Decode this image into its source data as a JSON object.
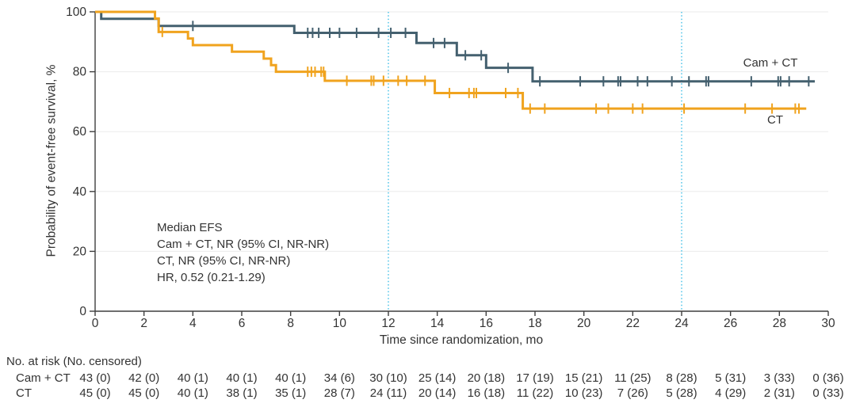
{
  "colors": {
    "cam_ct_line": "#44606F",
    "ct_line": "#F0A31E",
    "reference_line": "#55C6EA",
    "gridline": "#EBEBEB",
    "axis": "#3F3F3F",
    "text": "#333333"
  },
  "chart_data": {
    "type": "line",
    "subtype": "kaplan-meier-step",
    "xlabel": "Time since randomization, mo",
    "ylabel": "Probability of event-free survival, %",
    "xlim": [
      0,
      30
    ],
    "ylim": [
      0,
      100
    ],
    "x_ticks": [
      0,
      2,
      4,
      6,
      8,
      10,
      12,
      14,
      16,
      18,
      20,
      22,
      24,
      26,
      28,
      30
    ],
    "y_ticks": [
      0,
      20,
      40,
      60,
      80,
      100
    ],
    "grid": "horizontal",
    "legend_position": "right-of-curves",
    "reference_lines_x": [
      12,
      24
    ],
    "annotations": [
      "Median EFS",
      "Cam + CT, NR (95% CI, NR-NR)",
      "CT, NR (95% CI, NR-NR)",
      "HR, 0.52 (0.21-1.29)"
    ],
    "series": [
      {
        "name": "Cam + CT",
        "color": "#44606F",
        "steps": [
          [
            0,
            100
          ],
          [
            0.25,
            97.7
          ],
          [
            2.6,
            95.3
          ],
          [
            8.15,
            93.0
          ],
          [
            13.15,
            89.6
          ],
          [
            14.8,
            85.5
          ],
          [
            16.0,
            81.3
          ],
          [
            17.9,
            76.8
          ]
        ],
        "end_time": 29.45,
        "censor_times": [
          4.0,
          8.7,
          8.9,
          9.15,
          9.6,
          10.0,
          10.7,
          11.6,
          12.1,
          12.7,
          13.85,
          14.3,
          15.15,
          15.8,
          16.9,
          18.2,
          19.85,
          20.8,
          21.4,
          21.5,
          22.2,
          22.6,
          23.6,
          24.3,
          25.0,
          25.1,
          26.85,
          27.95,
          28.05,
          28.4,
          29.2
        ]
      },
      {
        "name": "CT",
        "color": "#F0A31E",
        "steps": [
          [
            0,
            100
          ],
          [
            2.45,
            97.8
          ],
          [
            2.6,
            93.3
          ],
          [
            3.8,
            91.1
          ],
          [
            4.0,
            88.9
          ],
          [
            5.6,
            86.7
          ],
          [
            6.9,
            84.4
          ],
          [
            7.2,
            82.2
          ],
          [
            7.4,
            80.0
          ],
          [
            9.4,
            77.0
          ],
          [
            13.9,
            72.9
          ],
          [
            17.5,
            67.7
          ]
        ],
        "end_time": 29.1,
        "censor_times": [
          2.75,
          8.7,
          8.85,
          9.0,
          9.25,
          9.35,
          10.3,
          11.3,
          11.4,
          11.8,
          12.4,
          12.75,
          13.5,
          14.5,
          15.3,
          15.5,
          15.6,
          16.8,
          17.3,
          17.8,
          18.4,
          20.5,
          21.0,
          22.0,
          22.4,
          24.1,
          26.6,
          27.7,
          28.65,
          28.8
        ]
      }
    ],
    "risk_table": {
      "header": "No. at risk (No. censored)",
      "times": [
        0,
        2,
        4,
        6,
        8,
        10,
        12,
        14,
        16,
        18,
        20,
        22,
        24,
        26,
        28,
        30
      ],
      "rows": [
        {
          "label": "Cam + CT",
          "values": [
            "43 (0)",
            "42 (0)",
            "40 (1)",
            "40 (1)",
            "40 (1)",
            "34 (6)",
            "30 (10)",
            "25 (14)",
            "20 (18)",
            "17 (19)",
            "15 (21)",
            "11 (25)",
            "8 (28)",
            "5 (31)",
            "3 (33)",
            "0 (36)"
          ]
        },
        {
          "label": "CT",
          "values": [
            "45 (0)",
            "45 (0)",
            "40 (1)",
            "38 (1)",
            "35 (1)",
            "28 (7)",
            "24 (11)",
            "20 (14)",
            "16 (18)",
            "11 (22)",
            "10 (23)",
            "7 (26)",
            "5 (28)",
            "4 (29)",
            "2 (31)",
            "0 (33)"
          ]
        }
      ]
    }
  }
}
